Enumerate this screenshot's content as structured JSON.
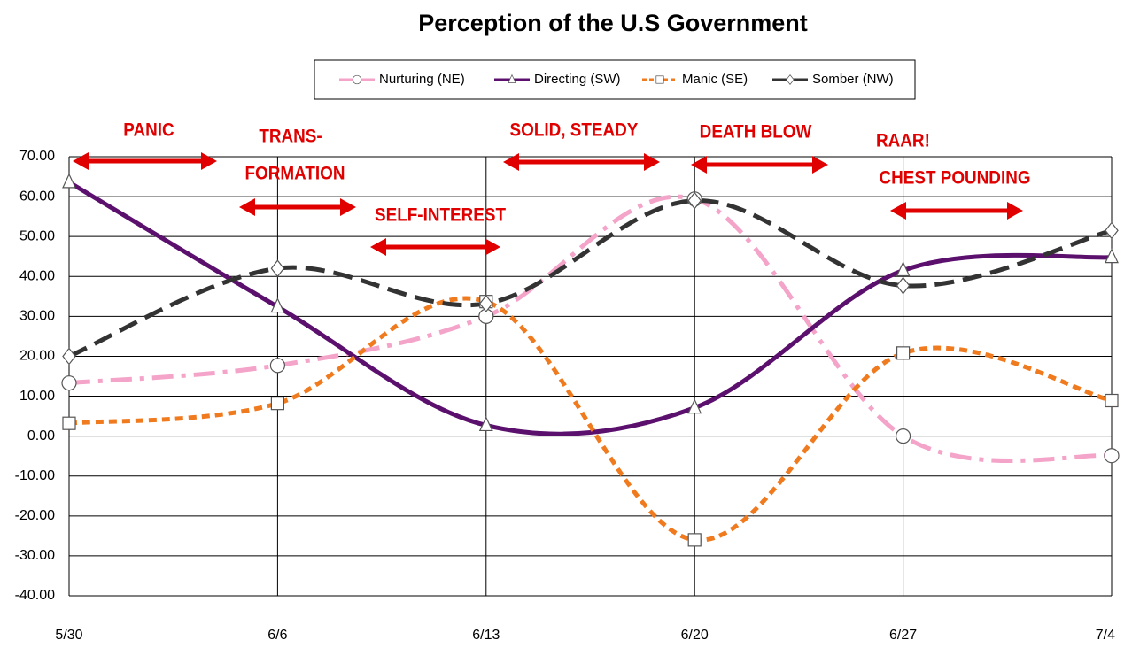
{
  "chart_data": {
    "type": "line",
    "title": "Perception of the U.S Government",
    "categories": [
      "5/30",
      "6/6",
      "6/13",
      "6/20",
      "6/27",
      "7/4"
    ],
    "series": [
      {
        "name": "Nurturing (NE)",
        "color": "#f4a3c9",
        "marker": "circle",
        "dash": "dash-dot",
        "values": [
          13.3,
          17.7,
          30.0,
          59.4,
          0.0,
          -4.9
        ]
      },
      {
        "name": "Directing (SW)",
        "color": "#5c106e",
        "marker": "triangle",
        "dash": "solid",
        "values": [
          63.6,
          32.4,
          2.7,
          7.1,
          41.5,
          44.8
        ]
      },
      {
        "name": "Manic (SE)",
        "color": "#f07a1e",
        "marker": "square",
        "dash": "dash",
        "values": [
          3.2,
          8.2,
          33.7,
          -26.0,
          20.8,
          8.9
        ]
      },
      {
        "name": "Somber (NW)",
        "color": "#333333",
        "marker": "diamond",
        "dash": "long-dash",
        "values": [
          20.0,
          42.0,
          33.2,
          59.0,
          37.7,
          51.5
        ]
      }
    ],
    "ylim": [
      -40,
      70
    ],
    "yticks": [
      {
        "value": 70,
        "label": "70.00"
      },
      {
        "value": 60,
        "label": "60.00"
      },
      {
        "value": 50,
        "label": "50.00"
      },
      {
        "value": 40,
        "label": "40.00"
      },
      {
        "value": 30,
        "label": "30.00"
      },
      {
        "value": 20,
        "label": "20.00"
      },
      {
        "value": 10,
        "label": "10.00"
      },
      {
        "value": 0,
        "label": "0.00"
      },
      {
        "value": -10,
        "label": "-10.00"
      },
      {
        "value": -20,
        "label": "-20.00"
      },
      {
        "value": -30,
        "label": "-30.00"
      },
      {
        "value": -40,
        "label": "-40.00"
      }
    ],
    "grid": true,
    "legend": "top",
    "annotations": [
      "PANIC",
      "TRANS-",
      "FORMATION",
      "SELF-INTEREST",
      "SOLID, STEADY",
      "DEATH BLOW",
      "RAAR!",
      "CHEST POUNDING"
    ]
  }
}
